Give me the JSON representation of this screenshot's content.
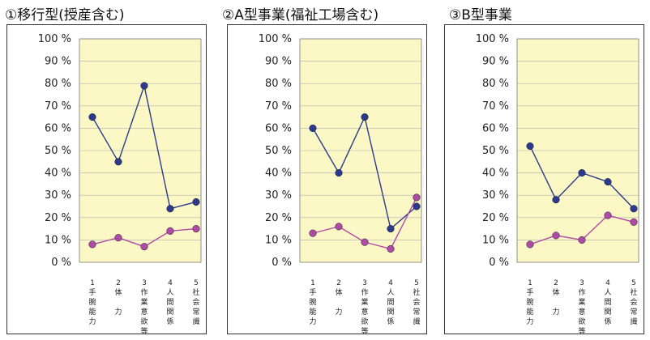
{
  "panels": [
    {
      "title": "①移行型(授産含む)"
    },
    {
      "title": "②A型事業(福祉工場含む)"
    },
    {
      "title": "③B型事業"
    }
  ],
  "colors": {
    "series_a": "#2b3a8f",
    "series_b": "#b04aa8",
    "plot_bg": "#fbf8c6"
  },
  "chart_data": [
    {
      "type": "line",
      "title": "①移行型(授産含む)",
      "categories": [
        "1\n手\n腕\n能\n力",
        "2\n体\n\n力",
        "3\n作\n業\n意\n欲\n等",
        "4\n人\n間\n関\n係",
        "5\n社\n会\n常\n識"
      ],
      "yticks": [
        "0 %",
        "10 %",
        "20 %",
        "30 %",
        "40 %",
        "50 %",
        "60 %",
        "70 %",
        "80 %",
        "90 %",
        "100 %"
      ],
      "ylim": [
        0,
        100
      ],
      "grid": true,
      "series": [
        {
          "values": [
            65,
            45,
            79,
            24,
            27
          ]
        },
        {
          "values": [
            8,
            11,
            7,
            14,
            15
          ]
        }
      ]
    },
    {
      "type": "line",
      "title": "②A型事業(福祉工場含む)",
      "categories": [
        "1\n手\n腕\n能\n力",
        "2\n体\n\n力",
        "3\n作\n業\n意\n欲\n等",
        "4\n人\n間\n関\n係",
        "5\n社\n会\n常\n識"
      ],
      "yticks": [
        "0 %",
        "10 %",
        "20 %",
        "30 %",
        "40 %",
        "50 %",
        "60 %",
        "70 %",
        "80 %",
        "90 %",
        "100 %"
      ],
      "ylim": [
        0,
        100
      ],
      "grid": true,
      "series": [
        {
          "values": [
            60,
            40,
            65,
            15,
            25
          ]
        },
        {
          "values": [
            13,
            16,
            9,
            6,
            29
          ]
        }
      ]
    },
    {
      "type": "line",
      "title": "③B型事業",
      "categories": [
        "1\n手\n腕\n能\n力",
        "2\n体\n\n力",
        "3\n作\n業\n意\n欲\n等",
        "4\n人\n間\n関\n係",
        "5\n社\n会\n常\n識"
      ],
      "yticks": [
        "0 %",
        "10 %",
        "20 %",
        "30 %",
        "40 %",
        "50 %",
        "60 %",
        "70 %",
        "80 %",
        "90 %",
        "100 %"
      ],
      "ylim": [
        0,
        100
      ],
      "grid": true,
      "series": [
        {
          "values": [
            52,
            28,
            40,
            36,
            24
          ]
        },
        {
          "values": [
            8,
            12,
            10,
            21,
            18
          ]
        }
      ]
    }
  ]
}
